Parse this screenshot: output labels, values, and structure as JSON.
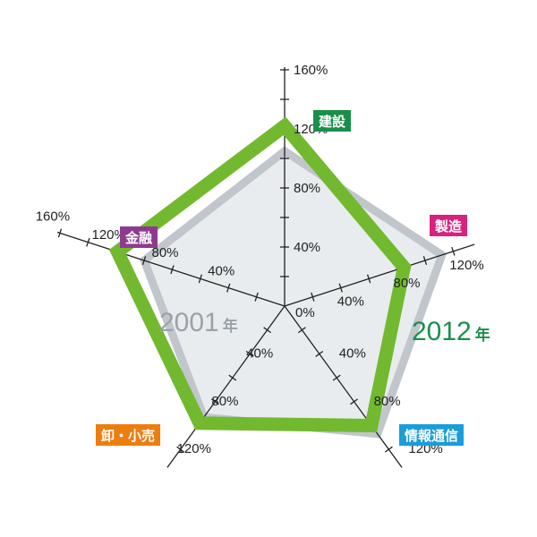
{
  "chart_data": {
    "type": "radar",
    "axes": [
      {
        "label": "建設",
        "color": "#1a8f4a"
      },
      {
        "label": "製造",
        "color": "#d6237d"
      },
      {
        "label": "情報通信",
        "color": "#1a9dd9"
      },
      {
        "label": "卸・小売",
        "color": "#ee7d10"
      },
      {
        "label": "金融",
        "color": "#8e3b8e"
      }
    ],
    "axis_max": [
      160,
      120,
      120,
      120,
      160
    ],
    "tick_step": 40,
    "center_label": "0%",
    "series": [
      {
        "name": "2001年",
        "year_text": "2001",
        "suffix": "年",
        "color": "#c0c6cb",
        "fill": "#e8ecef",
        "values": [
          105,
          112,
          107,
          93,
          100
        ]
      },
      {
        "name": "2012年",
        "year_text": "2012",
        "suffix": "年",
        "color": "#72b92f",
        "values": [
          122,
          85,
          100,
          98,
          119
        ]
      }
    ],
    "legend": "inline labels beside the polygons"
  }
}
